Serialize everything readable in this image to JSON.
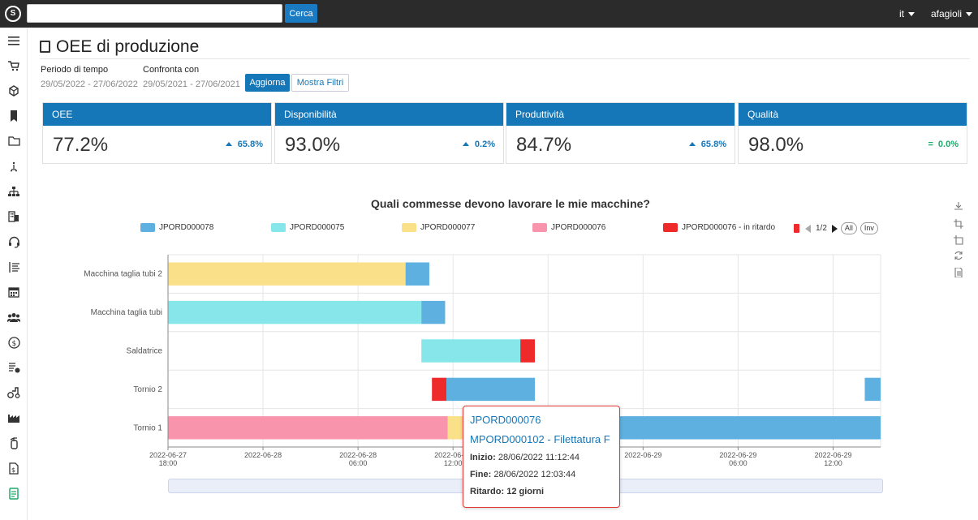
{
  "topbar": {
    "search_placeholder": "",
    "search_button": "Cerca",
    "language": "it",
    "user": "afagioli"
  },
  "page": {
    "title": "OEE di produzione"
  },
  "filters": {
    "period_label": "Periodo di tempo",
    "period_value": "29/05/2022 - 27/06/2022",
    "compare_label": "Confronta con",
    "compare_value": "29/05/2021 - 27/06/2021",
    "update_button": "Aggiorna",
    "filters_button": "Mostra Filtri"
  },
  "kpis": [
    {
      "label": "OEE",
      "value": "77.2%",
      "delta": "65.8%",
      "trend": "up"
    },
    {
      "label": "Disponibilità",
      "value": "93.0%",
      "delta": "0.2%",
      "trend": "up"
    },
    {
      "label": "Produttività",
      "value": "84.7%",
      "delta": "65.8%",
      "trend": "up"
    },
    {
      "label": "Qualità",
      "value": "98.0%",
      "delta": "0.0%",
      "trend": "equal"
    }
  ],
  "colors": {
    "accent": "#1577b8",
    "positive": "#22a96b",
    "late": "#ee2a2a"
  },
  "legend_nav": {
    "page": "1/2",
    "all": "All",
    "inv": "Inv"
  },
  "chart_data": {
    "type": "gantt",
    "title": "Quali commesse devono lavorare le mie macchine?",
    "legend_placement": "top",
    "grid": true,
    "series": [
      {
        "name": "JPORD000078",
        "color": "#5eb0e0"
      },
      {
        "name": "JPORD000075",
        "color": "#86e6ea"
      },
      {
        "name": "JPORD000077",
        "color": "#fbe08a"
      },
      {
        "name": "JPORD000076",
        "color": "#f994ad"
      },
      {
        "name": "JPORD000076 - in ritardo",
        "color": "#ee2a2a"
      }
    ],
    "categories": [
      "Macchina taglia tubi 2",
      "Macchina taglia tubi",
      "Saldatrice",
      "Tornio 2",
      "Tornio 1"
    ],
    "x_ticks": [
      [
        "2022-06-27",
        "18:00"
      ],
      [
        "2022-06-28",
        ""
      ],
      [
        "2022-06-28",
        "06:00"
      ],
      [
        "2022-06-28",
        "12:00"
      ],
      [
        "2022-06-28",
        "18:00"
      ],
      [
        "2022-06-29",
        ""
      ],
      [
        "2022-06-29",
        "06:00"
      ],
      [
        "2022-06-29",
        "12:00"
      ]
    ],
    "xlim": [
      "2022-06-27 18:00",
      "2022-06-29 15:00"
    ],
    "tasks": [
      {
        "category": "Macchina taglia tubi 2",
        "series": "JPORD000077",
        "start": "2022-06-27 18:00",
        "end": "2022-06-28 09:00"
      },
      {
        "category": "Macchina taglia tubi 2",
        "series": "JPORD000078",
        "start": "2022-06-28 09:00",
        "end": "2022-06-28 10:30"
      },
      {
        "category": "Macchina taglia tubi",
        "series": "JPORD000075",
        "start": "2022-06-27 18:00",
        "end": "2022-06-28 10:00"
      },
      {
        "category": "Macchina taglia tubi",
        "series": "JPORD000078",
        "start": "2022-06-28 10:00",
        "end": "2022-06-28 11:30"
      },
      {
        "category": "Saldatrice",
        "series": "JPORD000075",
        "start": "2022-06-28 10:00",
        "end": "2022-06-28 16:15"
      },
      {
        "category": "Saldatrice",
        "series": "JPORD000076 - in ritardo",
        "start": "2022-06-28 16:15",
        "end": "2022-06-28 17:10"
      },
      {
        "category": "Tornio 2",
        "series": "JPORD000076 - in ritardo",
        "start": "2022-06-28 10:40",
        "end": "2022-06-28 11:35"
      },
      {
        "category": "Tornio 2",
        "series": "JPORD000078",
        "start": "2022-06-28 11:35",
        "end": "2022-06-28 17:10"
      },
      {
        "category": "Tornio 2",
        "series": "JPORD000078",
        "start": "2022-06-29 14:00",
        "end": "2022-06-29 15:00"
      },
      {
        "category": "Tornio 1",
        "series": "JPORD000076",
        "start": "2022-06-27 18:00",
        "end": "2022-06-28 11:40"
      },
      {
        "category": "Tornio 1",
        "series": "JPORD000077",
        "start": "2022-06-28 11:40",
        "end": "2022-06-28 13:00"
      },
      {
        "category": "Tornio 1",
        "series": "JPORD000078",
        "start": "2022-06-28 19:00",
        "end": "2022-06-29 15:00"
      }
    ]
  },
  "tooltip": {
    "title": "JPORD000076",
    "subtitle": "MPORD000102 - Filettatura F",
    "start_label": "Inizio:",
    "start_value": "28/06/2022 11:12:44",
    "end_label": "Fine:",
    "end_value": "28/06/2022 12:03:44",
    "delay_label": "Ritardo:",
    "delay_value": "12 giorni"
  },
  "sidebar": {
    "icons": [
      "menu-icon",
      "cart-icon",
      "cube-icon",
      "bookmark-icon",
      "folder-icon",
      "tree-icon",
      "org-chart-icon",
      "building-icon",
      "headset-icon",
      "list-icon",
      "calendar-icon",
      "users-icon",
      "money-icon",
      "schedule-icon",
      "tractor-icon",
      "factory-icon",
      "extinguisher-icon",
      "invoice-icon",
      "report-icon"
    ]
  }
}
